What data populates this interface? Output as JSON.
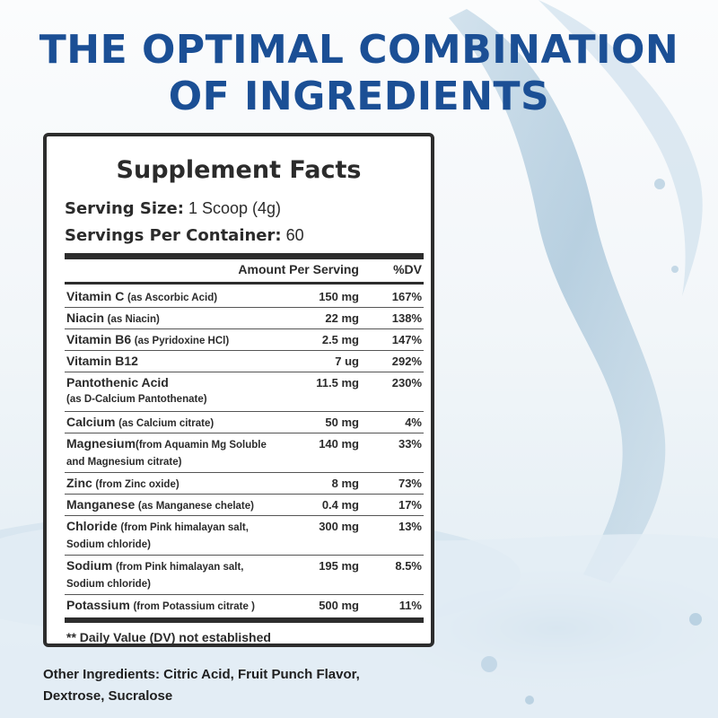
{
  "headline": {
    "line1": "THE OPTIMAL COMBINATION",
    "line2": "OF INGREDIENTS"
  },
  "panel": {
    "title": "Supplement Facts",
    "serving_size_label": "Serving Size:",
    "serving_size_value": " 1 Scoop (4g)",
    "servings_per_container_label": "Servings Per Container:",
    "servings_per_container_value": " 60",
    "columns": {
      "amount": "Amount Per Serving",
      "dv": "%DV"
    },
    "rows": [
      {
        "name": "Vitamin C",
        "source": "(as Ascorbic Acid)",
        "amount": "150 mg",
        "dv": "167%"
      },
      {
        "name": "Niacin",
        "source": "(as Niacin)",
        "amount": "22 mg",
        "dv": "138%"
      },
      {
        "name": "Vitamin B6",
        "source": "(as Pyridoxine HCl)",
        "amount": "2.5 mg",
        "dv": "147%"
      },
      {
        "name": "Vitamin B12",
        "source": "",
        "amount": "7 ug",
        "dv": "292%"
      },
      {
        "name": "Pantothenic Acid",
        "source": "(as D-Calcium Pantothenate)",
        "amount": "11.5 mg",
        "dv": "230%"
      },
      {
        "name": "Calcium",
        "source": "(as Calcium citrate)",
        "amount": "50 mg",
        "dv": "4%"
      },
      {
        "name": "Magnesium",
        "source": "(from Aquamin Mg Soluble and Magnesium citrate)",
        "amount": "140 mg",
        "dv": "33%"
      },
      {
        "name": "Zinc",
        "source": "(from Zinc oxide)",
        "amount": "8 mg",
        "dv": "73%"
      },
      {
        "name": "Manganese",
        "source": "(as Manganese chelate)",
        "amount": "0.4 mg",
        "dv": "17%"
      },
      {
        "name": "Chloride",
        "source": "(from Pink himalayan salt, Sodium chloride)",
        "amount": "300 mg",
        "dv": "13%"
      },
      {
        "name": "Sodium",
        "source": "(from Pink himalayan salt, Sodium chloride)",
        "amount": "195 mg",
        "dv": "8.5%"
      },
      {
        "name": "Potassium",
        "source": "(from Potassium citrate )",
        "amount": "500 mg",
        "dv": "11%"
      }
    ],
    "footnote": "** Daily Value (DV) not established"
  },
  "other_ingredients": {
    "line1": "Other Ingredients: Citric Acid, Fruit Punch Flavor,",
    "line2": "Dextrose, Sucralose"
  }
}
